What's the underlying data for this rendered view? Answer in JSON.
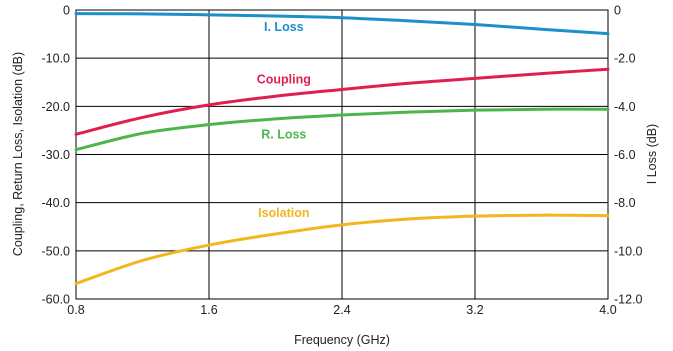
{
  "chart_data": {
    "type": "line",
    "xlabel": "Frequency (GHz)",
    "ylabel": "Coupling, Return Loss, Isolation (dB)",
    "y2label": "I Loss (dB)",
    "xlim": [
      0.8,
      4.0
    ],
    "ylim": [
      -60,
      0
    ],
    "y2lim": [
      -12,
      0
    ],
    "grid": true,
    "x_ticks": [
      "0.8",
      "1.6",
      "2.4",
      "3.2",
      "4.0"
    ],
    "y_ticks": [
      "0",
      "-10.0",
      "-20.0",
      "-30.0",
      "-40.0",
      "-50.0",
      "-60.0"
    ],
    "y2_ticks": [
      "0",
      "-2.0",
      "-4.0",
      "-6.0",
      "-8.0",
      "-10.0",
      "-12.0"
    ],
    "series": [
      {
        "name": "I. Loss",
        "axis": "right",
        "color": "#1c8fcb",
        "x": [
          0.8,
          1.2,
          1.6,
          2.0,
          2.4,
          2.8,
          3.2,
          3.6,
          4.0
        ],
        "y": [
          -0.15,
          -0.16,
          -0.2,
          -0.25,
          -0.32,
          -0.45,
          -0.6,
          -0.8,
          -0.98
        ]
      },
      {
        "name": "Coupling",
        "axis": "left",
        "color": "#de1f4f",
        "x": [
          0.8,
          1.2,
          1.6,
          2.0,
          2.4,
          2.8,
          3.2,
          3.6,
          4.0
        ],
        "y": [
          -25.8,
          -22.3,
          -19.7,
          -17.9,
          -16.5,
          -15.2,
          -14.2,
          -13.2,
          -12.3
        ]
      },
      {
        "name": "R. Loss",
        "axis": "left",
        "color": "#4cb649",
        "x": [
          0.8,
          1.2,
          1.6,
          2.0,
          2.4,
          2.8,
          3.2,
          3.6,
          4.0
        ],
        "y": [
          -29.0,
          -25.6,
          -23.8,
          -22.6,
          -21.8,
          -21.2,
          -20.8,
          -20.6,
          -20.6
        ]
      },
      {
        "name": "Isolation",
        "axis": "left",
        "color": "#f3b71e",
        "x": [
          0.8,
          1.2,
          1.6,
          2.0,
          2.4,
          2.8,
          3.2,
          3.6,
          4.0
        ],
        "y": [
          -56.8,
          -52.0,
          -48.8,
          -46.5,
          -44.6,
          -43.4,
          -42.8,
          -42.6,
          -42.7
        ]
      }
    ]
  }
}
